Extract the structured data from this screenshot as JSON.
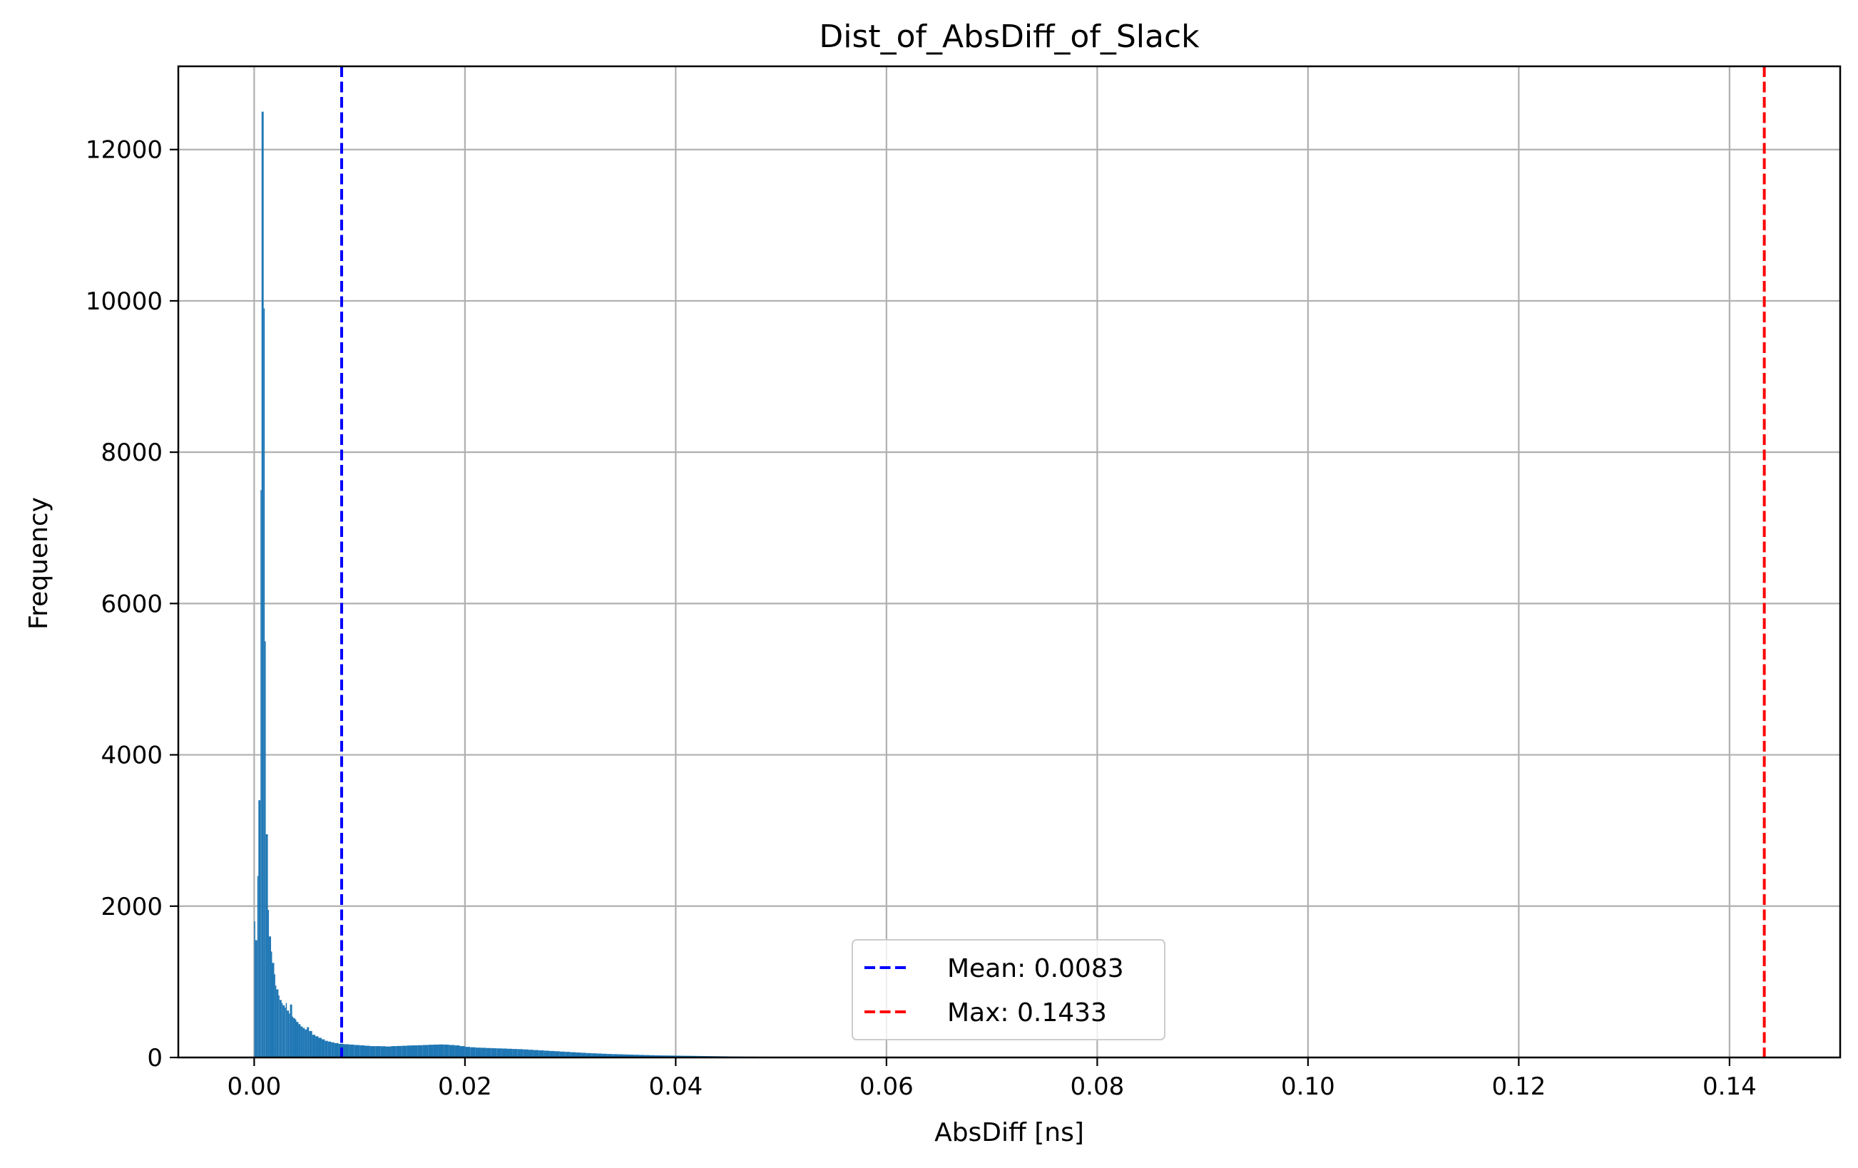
{
  "chart_data": {
    "type": "bar",
    "title": "Dist_of_AbsDiff_of_Slack",
    "xlabel": "AbsDiff [ns]",
    "ylabel": "Frequency",
    "xlim": [
      -0.0072,
      0.1505
    ],
    "ylim": [
      0,
      13100
    ],
    "grid": true,
    "legend_position": "lower center",
    "xticks": [
      {
        "value": 0.0,
        "label": "0.00"
      },
      {
        "value": 0.02,
        "label": "0.02"
      },
      {
        "value": 0.04,
        "label": "0.04"
      },
      {
        "value": 0.06,
        "label": "0.06"
      },
      {
        "value": 0.08,
        "label": "0.08"
      },
      {
        "value": 0.1,
        "label": "0.10"
      },
      {
        "value": 0.12,
        "label": "0.12"
      },
      {
        "value": 0.14,
        "label": "0.14"
      }
    ],
    "yticks": [
      {
        "value": 0,
        "label": "0"
      },
      {
        "value": 2000,
        "label": "2000"
      },
      {
        "value": 4000,
        "label": "4000"
      },
      {
        "value": 6000,
        "label": "6000"
      },
      {
        "value": 8000,
        "label": "8000"
      },
      {
        "value": 10000,
        "label": "10000"
      },
      {
        "value": 12000,
        "label": "12000"
      }
    ],
    "bar_color": "#1f77b4",
    "bin_width": 0.0001433,
    "bins": [
      [
        0.0,
        1800
      ],
      [
        0.0001,
        1550
      ],
      [
        0.0003,
        2400
      ],
      [
        0.0004,
        3400
      ],
      [
        0.0006,
        7500
      ],
      [
        0.0007,
        12500
      ],
      [
        0.0009,
        9900
      ],
      [
        0.001,
        5500
      ],
      [
        0.0011,
        2950
      ],
      [
        0.0013,
        1950
      ],
      [
        0.0014,
        1600
      ],
      [
        0.0016,
        1400
      ],
      [
        0.0017,
        1250
      ],
      [
        0.0019,
        1100
      ],
      [
        0.002,
        950
      ],
      [
        0.0021,
        900
      ],
      [
        0.0023,
        820
      ],
      [
        0.0024,
        760
      ],
      [
        0.0026,
        720
      ],
      [
        0.0027,
        690
      ],
      [
        0.0029,
        660
      ],
      [
        0.003,
        720
      ],
      [
        0.0031,
        620
      ],
      [
        0.0033,
        580
      ],
      [
        0.0034,
        700
      ],
      [
        0.0036,
        540
      ],
      [
        0.0037,
        520
      ],
      [
        0.0039,
        500
      ],
      [
        0.004,
        470
      ],
      [
        0.0042,
        440
      ],
      [
        0.0044,
        410
      ],
      [
        0.0046,
        390
      ],
      [
        0.0048,
        370
      ],
      [
        0.005,
        400
      ],
      [
        0.0052,
        350
      ],
      [
        0.0055,
        300
      ],
      [
        0.0058,
        280
      ],
      [
        0.0061,
        260
      ],
      [
        0.0064,
        240
      ],
      [
        0.0067,
        220
      ],
      [
        0.007,
        210
      ],
      [
        0.0073,
        200
      ],
      [
        0.0076,
        190
      ],
      [
        0.008,
        180
      ],
      [
        0.0085,
        175
      ],
      [
        0.009,
        170
      ],
      [
        0.0095,
        165
      ],
      [
        0.01,
        160
      ],
      [
        0.0105,
        155
      ],
      [
        0.011,
        150
      ],
      [
        0.0115,
        150
      ],
      [
        0.012,
        148
      ],
      [
        0.0125,
        145
      ],
      [
        0.013,
        150
      ],
      [
        0.0135,
        152
      ],
      [
        0.014,
        155
      ],
      [
        0.0145,
        158
      ],
      [
        0.015,
        160
      ],
      [
        0.0155,
        162
      ],
      [
        0.016,
        165
      ],
      [
        0.0165,
        168
      ],
      [
        0.017,
        170
      ],
      [
        0.0175,
        172
      ],
      [
        0.018,
        170
      ],
      [
        0.0185,
        165
      ],
      [
        0.019,
        160
      ],
      [
        0.0195,
        150
      ],
      [
        0.02,
        140
      ],
      [
        0.0205,
        135
      ],
      [
        0.021,
        130
      ],
      [
        0.0215,
        128
      ],
      [
        0.022,
        125
      ],
      [
        0.0225,
        122
      ],
      [
        0.023,
        120
      ],
      [
        0.0235,
        118
      ],
      [
        0.024,
        115
      ],
      [
        0.0245,
        112
      ],
      [
        0.025,
        110
      ],
      [
        0.0255,
        106
      ],
      [
        0.026,
        102
      ],
      [
        0.0265,
        98
      ],
      [
        0.027,
        94
      ],
      [
        0.0275,
        90
      ],
      [
        0.028,
        86
      ],
      [
        0.0285,
        82
      ],
      [
        0.029,
        78
      ],
      [
        0.0295,
        74
      ],
      [
        0.03,
        70
      ],
      [
        0.0305,
        66
      ],
      [
        0.031,
        62
      ],
      [
        0.0315,
        58
      ],
      [
        0.032,
        55
      ],
      [
        0.0325,
        52
      ],
      [
        0.033,
        49
      ],
      [
        0.0335,
        46
      ],
      [
        0.034,
        44
      ],
      [
        0.0345,
        42
      ],
      [
        0.035,
        40
      ],
      [
        0.0355,
        38
      ],
      [
        0.036,
        36
      ],
      [
        0.0365,
        34
      ],
      [
        0.037,
        32
      ],
      [
        0.0375,
        30
      ],
      [
        0.038,
        28
      ],
      [
        0.0385,
        27
      ],
      [
        0.039,
        26
      ],
      [
        0.0395,
        25
      ],
      [
        0.04,
        24
      ],
      [
        0.0405,
        23
      ],
      [
        0.041,
        22
      ],
      [
        0.0415,
        21
      ],
      [
        0.042,
        20
      ],
      [
        0.0425,
        19
      ],
      [
        0.043,
        18
      ],
      [
        0.0435,
        17
      ],
      [
        0.044,
        16
      ],
      [
        0.0445,
        15
      ],
      [
        0.045,
        14
      ],
      [
        0.0455,
        13
      ],
      [
        0.046,
        12
      ],
      [
        0.0465,
        11
      ],
      [
        0.047,
        11
      ],
      [
        0.0475,
        10
      ],
      [
        0.048,
        10
      ],
      [
        0.0485,
        9
      ],
      [
        0.049,
        9
      ],
      [
        0.0495,
        8
      ],
      [
        0.05,
        8
      ],
      [
        0.0505,
        7
      ],
      [
        0.051,
        7
      ],
      [
        0.0515,
        6
      ],
      [
        0.052,
        6
      ],
      [
        0.0525,
        6
      ],
      [
        0.053,
        5
      ],
      [
        0.0535,
        5
      ],
      [
        0.054,
        5
      ],
      [
        0.0545,
        5
      ],
      [
        0.055,
        4
      ],
      [
        0.0555,
        4
      ],
      [
        0.056,
        4
      ],
      [
        0.057,
        3
      ],
      [
        0.058,
        3
      ],
      [
        0.059,
        2
      ],
      [
        0.06,
        2
      ],
      [
        0.062,
        1
      ],
      [
        0.064,
        1
      ],
      [
        0.066,
        1
      ],
      [
        0.069,
        1
      ],
      [
        0.072,
        1
      ],
      [
        0.076,
        1
      ],
      [
        0.08,
        1
      ],
      [
        0.085,
        1
      ],
      [
        0.09,
        1
      ]
    ],
    "reference_lines": [
      {
        "name": "Mean: 0.0083",
        "value": 0.0083,
        "color": "#0000ff"
      },
      {
        "name": "Max: 0.1433",
        "value": 0.1433,
        "color": "#ff0000"
      }
    ]
  }
}
